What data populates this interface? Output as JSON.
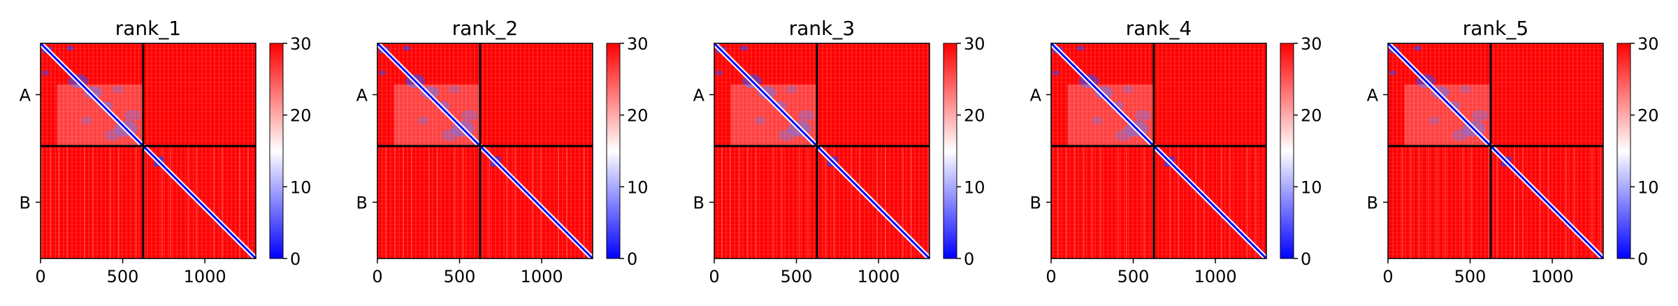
{
  "figure": {
    "colormap": {
      "low": "#0000ff",
      "mid": "#ffffff",
      "high": "#ff0000"
    },
    "color_range": [
      0,
      30
    ]
  },
  "chart_data": [
    {
      "type": "heatmap",
      "title": "rank_1",
      "xlim": [
        0,
        1310
      ],
      "xticks": [
        0,
        500,
        1000
      ],
      "xtick_labels": [
        "0",
        "500",
        "1000"
      ],
      "chain_labels": [
        "A",
        "B"
      ],
      "chain_boundary": 625,
      "colorbar_ticks": [
        0,
        10,
        20,
        30
      ],
      "colorbar_labels": [
        "0",
        "10",
        "20",
        "30"
      ],
      "clim": [
        0,
        30
      ]
    },
    {
      "type": "heatmap",
      "title": "rank_2",
      "xlim": [
        0,
        1310
      ],
      "xticks": [
        0,
        500,
        1000
      ],
      "xtick_labels": [
        "0",
        "500",
        "1000"
      ],
      "chain_labels": [
        "A",
        "B"
      ],
      "chain_boundary": 625,
      "colorbar_ticks": [
        0,
        10,
        20,
        30
      ],
      "colorbar_labels": [
        "0",
        "10",
        "20",
        "30"
      ],
      "clim": [
        0,
        30
      ]
    },
    {
      "type": "heatmap",
      "title": "rank_3",
      "xlim": [
        0,
        1310
      ],
      "xticks": [
        0,
        500,
        1000
      ],
      "xtick_labels": [
        "0",
        "500",
        "1000"
      ],
      "chain_labels": [
        "A",
        "B"
      ],
      "chain_boundary": 625,
      "colorbar_ticks": [
        0,
        10,
        20,
        30
      ],
      "colorbar_labels": [
        "0",
        "10",
        "20",
        "30"
      ],
      "clim": [
        0,
        30
      ]
    },
    {
      "type": "heatmap",
      "title": "rank_4",
      "xlim": [
        0,
        1310
      ],
      "xticks": [
        0,
        500,
        1000
      ],
      "xtick_labels": [
        "0",
        "500",
        "1000"
      ],
      "chain_labels": [
        "A",
        "B"
      ],
      "chain_boundary": 625,
      "colorbar_ticks": [
        0,
        10,
        20,
        30
      ],
      "colorbar_labels": [
        "0",
        "10",
        "20",
        "30"
      ],
      "clim": [
        0,
        30
      ]
    },
    {
      "type": "heatmap",
      "title": "rank_5",
      "xlim": [
        0,
        1310
      ],
      "xticks": [
        0,
        500,
        1000
      ],
      "xtick_labels": [
        "0",
        "500",
        "1000"
      ],
      "chain_labels": [
        "A",
        "B"
      ],
      "chain_boundary": 625,
      "colorbar_ticks": [
        0,
        10,
        20,
        30
      ],
      "colorbar_labels": [
        "0",
        "10",
        "20",
        "30"
      ],
      "clim": [
        0,
        30
      ]
    }
  ]
}
